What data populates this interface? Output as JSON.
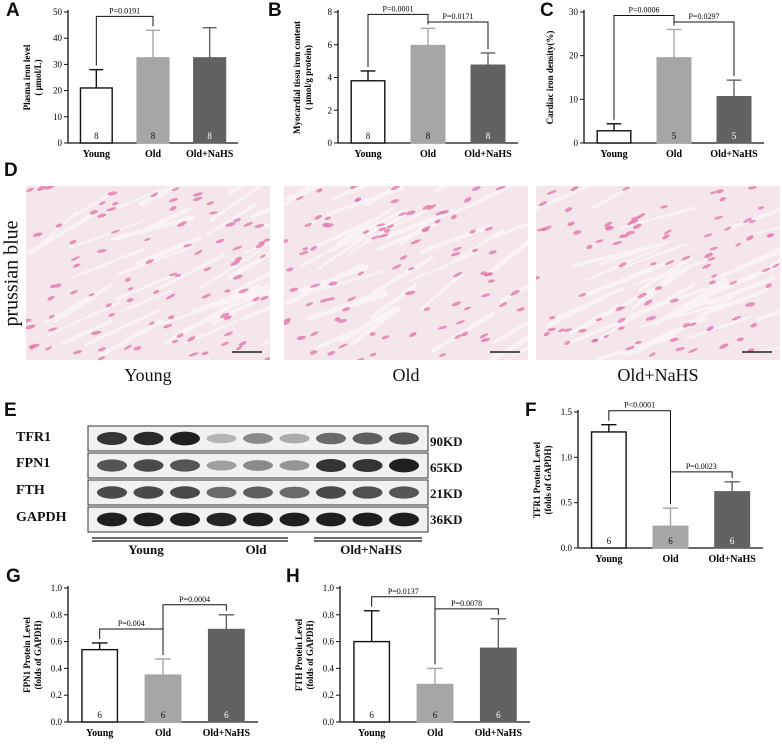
{
  "panels": {
    "a": "A",
    "b": "B",
    "c": "C",
    "d": "D",
    "e": "E",
    "f": "F",
    "g": "G",
    "h": "H"
  },
  "chart_data": [
    {
      "id": "A",
      "type": "bar",
      "categories": [
        "Young",
        "Old",
        "Old+NaHS"
      ],
      "values": [
        21,
        32.5,
        32.5
      ],
      "errors": [
        7,
        10.5,
        11.5
      ],
      "n": [
        "8",
        "8",
        "8"
      ],
      "fills": [
        "#ffffff",
        "#a6a6a8",
        "#626264"
      ],
      "ylabel": [
        "Plasma iron level",
        "( μmol/L)"
      ],
      "ylim": [
        0,
        50
      ],
      "yticks": [
        0,
        10,
        20,
        30,
        40,
        50
      ],
      "comparisons": [
        {
          "from": 0,
          "to": 1,
          "label": "P=0.0191"
        }
      ]
    },
    {
      "id": "B",
      "type": "bar",
      "categories": [
        "Young",
        "Old",
        "Old+NaHS"
      ],
      "values": [
        3.8,
        5.95,
        4.75
      ],
      "errors": [
        0.6,
        1.05,
        0.75
      ],
      "n": [
        "8",
        "8",
        "8"
      ],
      "fills": [
        "#ffffff",
        "#a6a6a8",
        "#626264"
      ],
      "ylabel": [
        "Myocardial tissu iron content",
        "( μmol/g protein)"
      ],
      "ylim": [
        0,
        8
      ],
      "yticks": [
        0,
        2,
        4,
        6,
        8
      ],
      "comparisons": [
        {
          "from": 0,
          "to": 1,
          "label": "P=0.0001"
        },
        {
          "from": 1,
          "to": 2,
          "label": "P=0.0171"
        }
      ]
    },
    {
      "id": "C",
      "type": "bar",
      "categories": [
        "Young",
        "Old",
        "Old+NaHS"
      ],
      "values": [
        2.8,
        19.5,
        10.6
      ],
      "errors": [
        1.6,
        6.5,
        3.8
      ],
      "n": [
        "",
        "5",
        "5"
      ],
      "fills": [
        "#ffffff",
        "#a6a6a8",
        "#626264"
      ],
      "ylabel": [
        "Cardiac iron density(%)"
      ],
      "ylim": [
        0,
        30
      ],
      "yticks": [
        0,
        10,
        20,
        30
      ],
      "comparisons": [
        {
          "from": 0,
          "to": 1,
          "label": "P=0.0006"
        },
        {
          "from": 1,
          "to": 2,
          "label": "P=0.0297"
        }
      ]
    },
    {
      "id": "F",
      "type": "bar",
      "categories": [
        "Young",
        "Old",
        "Old+NaHS"
      ],
      "values": [
        1.28,
        0.24,
        0.62
      ],
      "errors": [
        0.08,
        0.2,
        0.11
      ],
      "n": [
        "6",
        "6",
        "6"
      ],
      "fills": [
        "#ffffff",
        "#a6a6a8",
        "#626264"
      ],
      "ylabel": [
        "TFR1 Protein Level",
        "(folds of GAPDH)"
      ],
      "ylim": [
        0,
        1.5
      ],
      "yticks": [
        0.0,
        0.5,
        1.0,
        1.5
      ],
      "ytick_labels": [
        "0.0",
        "0.5",
        "1.0",
        "1.5"
      ],
      "comparisons": [
        {
          "from": 0,
          "to": 1,
          "label": "P<0.0001"
        },
        {
          "from": 1,
          "to": 2,
          "label": "P=0.0023"
        }
      ]
    },
    {
      "id": "G",
      "type": "bar",
      "categories": [
        "Young",
        "Old",
        "Old+NaHS"
      ],
      "values": [
        0.54,
        0.35,
        0.69
      ],
      "errors": [
        0.05,
        0.12,
        0.11
      ],
      "n": [
        "6",
        "6",
        "6"
      ],
      "fills": [
        "#ffffff",
        "#a6a6a8",
        "#626264"
      ],
      "ylabel": [
        "FPN1 Protein Level",
        "(folds of GAPDH)"
      ],
      "ylim": [
        0,
        1.0
      ],
      "yticks": [
        0.0,
        0.2,
        0.4,
        0.6,
        0.8,
        1.0
      ],
      "ytick_labels": [
        "0.0",
        "0.2",
        "0.4",
        "0.6",
        "0.8",
        "1.0"
      ],
      "comparisons": [
        {
          "from": 0,
          "to": 1,
          "label": "P=0.004"
        },
        {
          "from": 1,
          "to": 2,
          "label": "P=0.0004"
        }
      ]
    },
    {
      "id": "H",
      "type": "bar",
      "categories": [
        "Young",
        "Old",
        "Old+NaHS"
      ],
      "values": [
        0.6,
        0.28,
        0.55
      ],
      "errors": [
        0.23,
        0.12,
        0.22
      ],
      "n": [
        "6",
        "6",
        "6"
      ],
      "fills": [
        "#ffffff",
        "#a6a6a8",
        "#626264"
      ],
      "ylabel": [
        "FTH Protein Level",
        "(folds of GAPDH)"
      ],
      "ylim": [
        0,
        1.0
      ],
      "yticks": [
        0.0,
        0.2,
        0.4,
        0.6,
        0.8,
        1.0
      ],
      "ytick_labels": [
        "0.0",
        "0.2",
        "0.4",
        "0.6",
        "0.8",
        "1.0"
      ],
      "comparisons": [
        {
          "from": 0,
          "to": 1,
          "label": "P=0.0137"
        },
        {
          "from": 1,
          "to": 2,
          "label": "P=0.0078"
        }
      ]
    }
  ],
  "micrographs": {
    "side_label": "prussian blue",
    "captions": [
      "Young",
      "Old",
      "Old+NaHS"
    ],
    "background": "#f4e6ea",
    "nuclei_color": "#e36fa8"
  },
  "western_blot": {
    "proteins": [
      "TFR1",
      "FPN1",
      "FTH",
      "GAPDH"
    ],
    "sizes": [
      "90KD",
      "65KD",
      "21KD",
      "36KD"
    ],
    "groups": [
      "Young",
      "Old",
      "Old+NaHS"
    ],
    "band_intensity": [
      [
        0.85,
        0.9,
        0.95,
        0.25,
        0.45,
        0.3,
        0.6,
        0.65,
        0.7
      ],
      [
        0.7,
        0.75,
        0.7,
        0.35,
        0.45,
        0.4,
        0.85,
        0.85,
        0.95
      ],
      [
        0.75,
        0.75,
        0.75,
        0.6,
        0.65,
        0.6,
        0.75,
        0.72,
        0.7
      ],
      [
        0.95,
        0.95,
        0.95,
        0.92,
        0.95,
        0.95,
        0.95,
        0.95,
        0.95
      ]
    ]
  }
}
